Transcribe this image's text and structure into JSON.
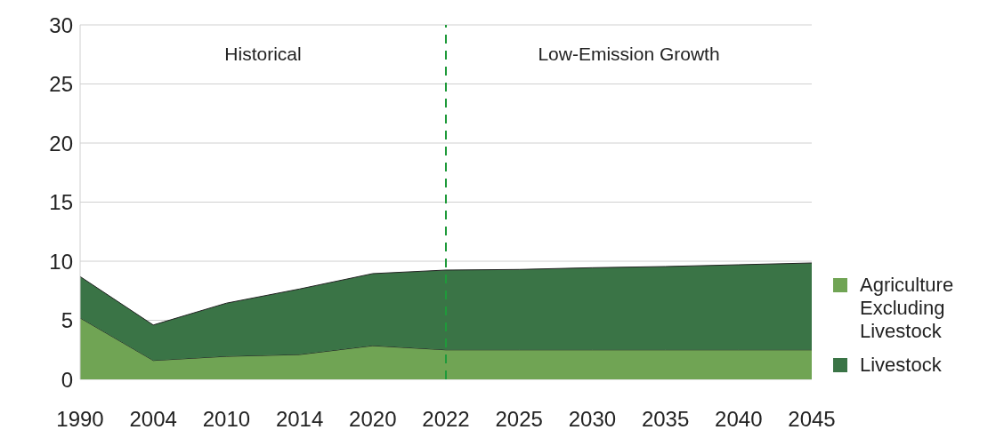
{
  "chart_data": {
    "type": "area",
    "stacked": true,
    "categories": [
      "1990",
      "2004",
      "2010",
      "2014",
      "2020",
      "2022",
      "2025",
      "2030",
      "2035",
      "2040",
      "2045"
    ],
    "series": [
      {
        "name": "Agriculture Excluding Livestock",
        "color": "#70a454",
        "values": [
          5.2,
          1.6,
          1.95,
          2.1,
          2.85,
          2.5,
          2.5,
          2.5,
          2.5,
          2.5,
          2.5
        ]
      },
      {
        "name": "Livestock",
        "color": "#3a7446",
        "values": [
          3.5,
          3.0,
          4.5,
          5.55,
          6.1,
          6.75,
          6.8,
          6.95,
          7.05,
          7.2,
          7.35
        ]
      }
    ],
    "ylim": [
      0,
      30
    ],
    "yticks": [
      0,
      5,
      10,
      15,
      20,
      25,
      30
    ],
    "grid": "y",
    "legend": "right",
    "ref_lines": [
      {
        "axis": "x",
        "value": "2022",
        "color": "#1f9a3a",
        "line_style": "dashed"
      }
    ],
    "annotations": [
      "Historical",
      "Low-Emission Growth"
    ]
  }
}
